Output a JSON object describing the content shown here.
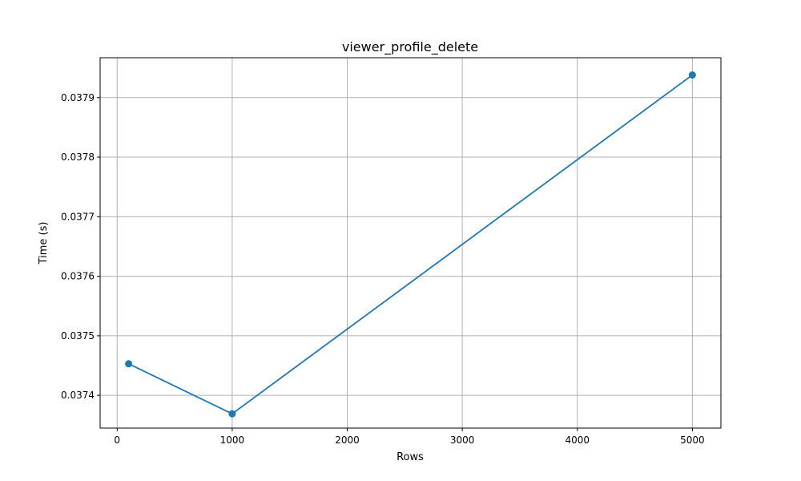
{
  "chart_data": {
    "type": "line",
    "title": "viewer_profile_delete",
    "xlabel": "Rows",
    "ylabel": "Time (s)",
    "grid": true,
    "xlim": [
      -148,
      5248
    ],
    "ylim": [
      0.037345,
      0.037967
    ],
    "x_ticks": [
      0,
      1000,
      2000,
      3000,
      4000,
      5000
    ],
    "x_tick_labels": [
      "0",
      "1000",
      "2000",
      "3000",
      "4000",
      "5000"
    ],
    "y_ticks": [
      0.0374,
      0.0375,
      0.0376,
      0.0377,
      0.0378,
      0.0379
    ],
    "y_tick_labels": [
      "0.0374",
      "0.0375",
      "0.0376",
      "0.0377",
      "0.0378",
      "0.0379"
    ],
    "series": [
      {
        "color": "#1f77b4",
        "marker": "circle",
        "points": [
          {
            "x": 100,
            "y": 0.037453
          },
          {
            "x": 1000,
            "y": 0.037369
          },
          {
            "x": 5000,
            "y": 0.037938
          }
        ]
      }
    ]
  }
}
